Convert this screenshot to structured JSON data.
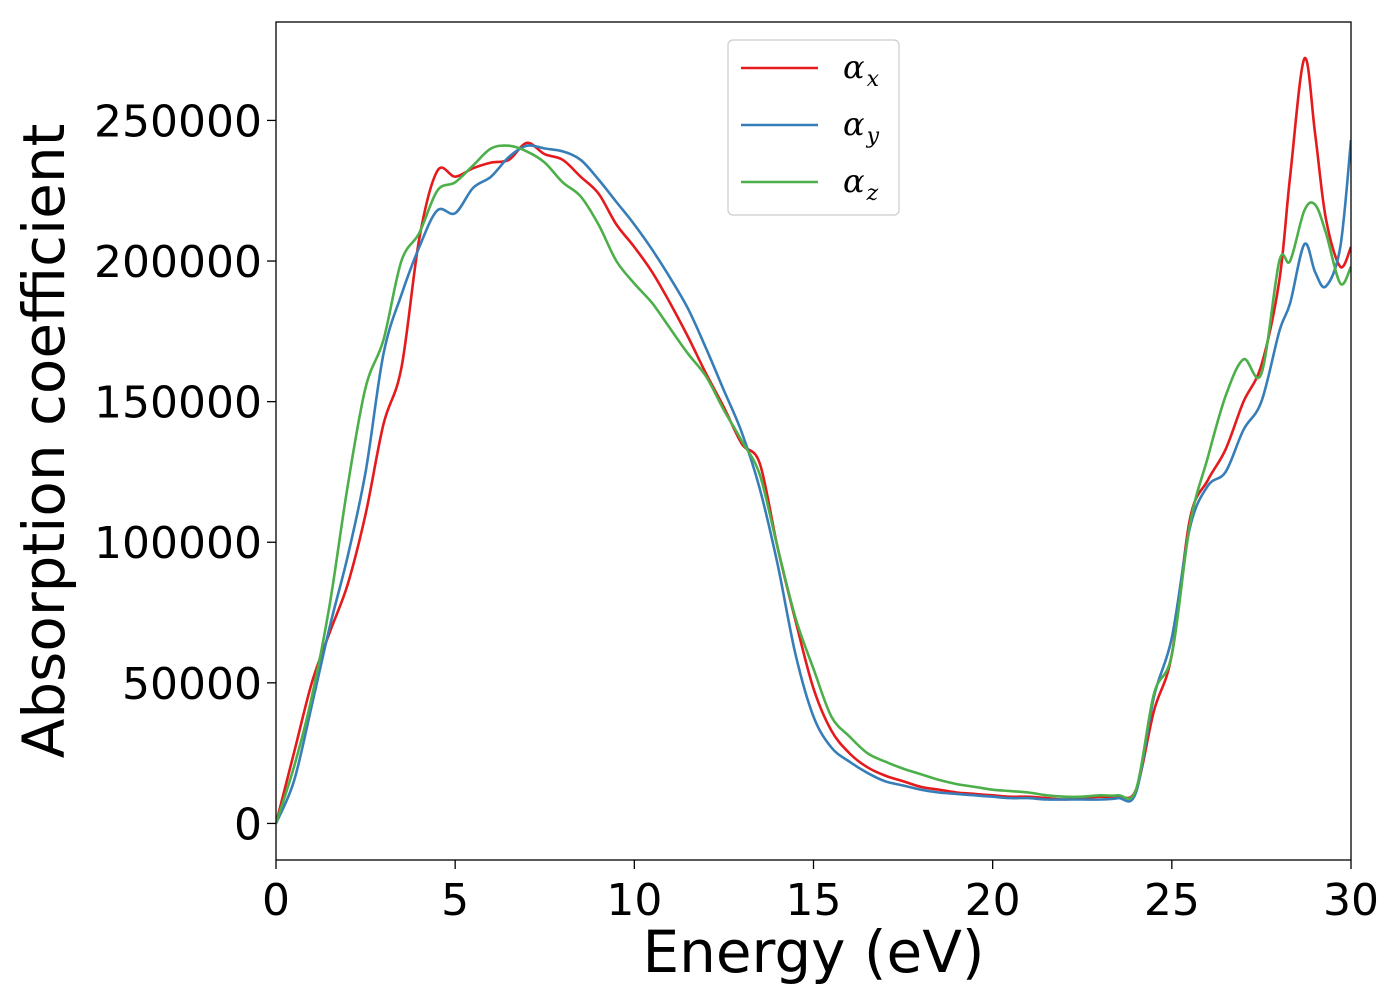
{
  "chart_data": {
    "type": "line",
    "title": "",
    "xlabel": "Energy (eV)",
    "ylabel": "Absorption coefficient",
    "xlim": [
      0,
      30
    ],
    "ylim": [
      -13000,
      285000
    ],
    "xticks": [
      0,
      5,
      10,
      15,
      20,
      25,
      30
    ],
    "yticks": [
      0,
      50000,
      100000,
      150000,
      200000,
      250000
    ],
    "grid": false,
    "legend_position": "top-center",
    "series": [
      {
        "name": "α_x",
        "legend_main": "α",
        "legend_sub": "x",
        "color": "#e41a1c",
        "x": [
          0,
          0.5,
          1,
          1.5,
          2,
          2.5,
          3,
          3.5,
          4,
          4.5,
          5,
          5.5,
          6,
          6.5,
          7,
          7.5,
          8,
          8.5,
          9,
          9.5,
          10,
          10.5,
          11,
          11.5,
          12,
          12.5,
          13,
          13.5,
          14,
          14.5,
          15,
          15.5,
          16,
          16.5,
          17,
          17.5,
          18,
          18.5,
          19,
          19.5,
          20,
          20.5,
          21,
          21.5,
          22,
          22.5,
          23,
          23.5,
          24,
          24.5,
          25,
          25.5,
          26,
          26.5,
          27,
          27.5,
          28,
          28.3,
          28.7,
          29,
          29.3,
          29.7,
          30
        ],
        "y": [
          0,
          25000,
          50000,
          68000,
          85000,
          110000,
          142000,
          162000,
          208000,
          232000,
          230000,
          233000,
          235000,
          236000,
          242000,
          238000,
          236000,
          230000,
          224000,
          213000,
          205000,
          196000,
          185000,
          173000,
          160000,
          148000,
          135000,
          128000,
          98000,
          72000,
          48000,
          33000,
          25000,
          20000,
          17000,
          15000,
          13000,
          12000,
          11000,
          10500,
          10000,
          9500,
          9500,
          9000,
          8500,
          9000,
          9500,
          9500,
          12000,
          40000,
          60000,
          108000,
          122000,
          133000,
          150000,
          163000,
          193000,
          230000,
          272000,
          245000,
          215000,
          198000,
          205000
        ]
      },
      {
        "name": "α_y",
        "legend_main": "α",
        "legend_sub": "y",
        "color": "#377eb8",
        "x": [
          0,
          0.5,
          1,
          1.5,
          2,
          2.5,
          3,
          3.5,
          4,
          4.5,
          5,
          5.5,
          6,
          6.5,
          7,
          7.5,
          8,
          8.5,
          9,
          9.5,
          10,
          10.5,
          11,
          11.5,
          12,
          12.5,
          13,
          13.5,
          14,
          14.5,
          15,
          15.5,
          16,
          16.5,
          17,
          17.5,
          18,
          18.5,
          19,
          19.5,
          20,
          20.5,
          21,
          21.5,
          22,
          22.5,
          23,
          23.5,
          24,
          24.5,
          25,
          25.5,
          26,
          26.5,
          27,
          27.5,
          28,
          28.3,
          28.7,
          29,
          29.3,
          29.7,
          30
        ],
        "y": [
          0,
          15000,
          42000,
          70000,
          95000,
          125000,
          167000,
          188000,
          205000,
          218000,
          217000,
          226000,
          230000,
          237000,
          241000,
          240000,
          239000,
          236000,
          229000,
          221000,
          213000,
          204000,
          194000,
          183000,
          169000,
          154000,
          139000,
          119000,
          92000,
          60000,
          38000,
          27000,
          22000,
          18000,
          15000,
          13500,
          12000,
          11000,
          10500,
          10000,
          9500,
          9000,
          9000,
          8500,
          8500,
          8500,
          8500,
          9000,
          11000,
          45000,
          66000,
          105000,
          120000,
          125000,
          140000,
          150000,
          175000,
          185000,
          206000,
          196000,
          191000,
          205000,
          243000
        ]
      },
      {
        "name": "α_z",
        "legend_main": "α",
        "legend_sub": "z",
        "color": "#4daf4a",
        "x": [
          0,
          0.5,
          1,
          1.5,
          2,
          2.5,
          3,
          3.5,
          4,
          4.5,
          5,
          5.5,
          6,
          6.5,
          7,
          7.5,
          8,
          8.5,
          9,
          9.5,
          10,
          10.5,
          11,
          11.5,
          12,
          12.5,
          13,
          13.5,
          14,
          14.5,
          15,
          15.5,
          16,
          16.5,
          17,
          17.5,
          18,
          18.5,
          19,
          19.5,
          20,
          20.5,
          21,
          21.5,
          22,
          22.5,
          23,
          23.5,
          24,
          24.5,
          25,
          25.5,
          26,
          26.5,
          27,
          27.5,
          28,
          28.3,
          28.7,
          29,
          29.3,
          29.7,
          30
        ],
        "y": [
          0,
          20000,
          45000,
          78000,
          120000,
          155000,
          172000,
          200000,
          210000,
          225000,
          228000,
          234000,
          240000,
          241000,
          239000,
          235000,
          228000,
          223000,
          213000,
          200000,
          192000,
          185000,
          176000,
          167000,
          159000,
          147000,
          136000,
          124000,
          98000,
          73000,
          55000,
          38000,
          31000,
          25000,
          22000,
          19500,
          17500,
          15500,
          14000,
          13000,
          12000,
          11500,
          11000,
          10000,
          9500,
          9500,
          10000,
          10000,
          12000,
          46000,
          60000,
          106000,
          130000,
          152000,
          165000,
          160000,
          200000,
          200000,
          218000,
          220000,
          210000,
          192000,
          198000
        ]
      }
    ]
  }
}
